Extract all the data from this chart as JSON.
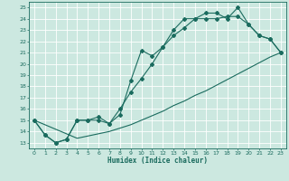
{
  "title": "",
  "xlabel": "Humidex (Indice chaleur)",
  "bg_color": "#cce8e0",
  "line_color": "#1a6b5e",
  "grid_color": "#ffffff",
  "xlim": [
    -0.5,
    23.5
  ],
  "ylim": [
    12.5,
    25.5
  ],
  "xticks": [
    0,
    1,
    2,
    3,
    4,
    5,
    6,
    7,
    8,
    9,
    10,
    11,
    12,
    13,
    14,
    15,
    16,
    17,
    18,
    19,
    20,
    21,
    22,
    23
  ],
  "yticks": [
    13,
    14,
    15,
    16,
    17,
    18,
    19,
    20,
    21,
    22,
    23,
    24,
    25
  ],
  "line1_x": [
    0,
    1,
    2,
    3,
    4,
    5,
    6,
    7,
    8,
    9,
    10,
    11,
    12,
    13,
    14,
    15,
    16,
    17,
    18,
    19,
    20,
    21,
    22,
    23
  ],
  "line1_y": [
    15,
    13.7,
    13,
    13.3,
    15,
    15,
    15,
    14.7,
    15.5,
    18.5,
    21.2,
    20.7,
    21.5,
    22.5,
    23.2,
    24,
    24,
    24,
    24.2,
    24.2,
    23.5,
    22.5,
    22.2,
    21
  ],
  "line2_x": [
    0,
    1,
    2,
    3,
    4,
    5,
    6,
    7,
    8,
    9,
    10,
    11,
    12,
    13,
    14,
    15,
    16,
    17,
    18,
    19,
    20,
    21,
    22,
    23
  ],
  "line2_y": [
    15,
    13.7,
    13,
    13.3,
    15,
    15,
    15.3,
    14.7,
    16,
    17.5,
    18.7,
    20,
    21.5,
    23,
    24,
    24,
    24.5,
    24.5,
    24,
    25,
    23.5,
    22.5,
    22.2,
    21
  ],
  "line3_x": [
    0,
    1,
    2,
    3,
    4,
    5,
    6,
    7,
    8,
    9,
    10,
    11,
    12,
    13,
    14,
    15,
    16,
    17,
    18,
    19,
    20,
    21,
    22,
    23
  ],
  "line3_y": [
    15,
    14.6,
    14.2,
    13.8,
    13.4,
    13.6,
    13.8,
    14.0,
    14.3,
    14.6,
    15.0,
    15.4,
    15.8,
    16.3,
    16.7,
    17.2,
    17.6,
    18.1,
    18.6,
    19.1,
    19.6,
    20.1,
    20.6,
    21.0
  ]
}
